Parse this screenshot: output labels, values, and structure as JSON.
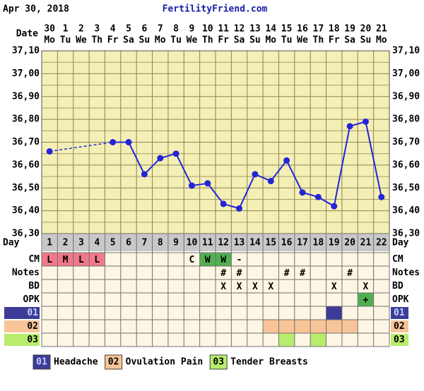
{
  "header": {
    "date": "Apr 30, 2018",
    "site": "FertilityFriend.com"
  },
  "chart_data": {
    "type": "line",
    "x_label": "Date",
    "categories": [
      "30",
      "1",
      "2",
      "3",
      "4",
      "5",
      "6",
      "7",
      "8",
      "9",
      "10",
      "11",
      "12",
      "13",
      "14",
      "15",
      "16",
      "17",
      "18",
      "19",
      "20",
      "21"
    ],
    "weekdays": [
      "Mo",
      "Tu",
      "We",
      "Th",
      "Fr",
      "Sa",
      "Su",
      "Mo",
      "Tu",
      "We",
      "Th",
      "Fr",
      "Sa",
      "Su",
      "Mo",
      "Tu",
      "We",
      "Th",
      "Fr",
      "Sa",
      "Su",
      "Mo"
    ],
    "series": [
      {
        "color": "#2424d8",
        "values": [
          36.66,
          null,
          null,
          null,
          36.7,
          36.7,
          36.56,
          36.63,
          36.65,
          36.51,
          36.52,
          36.43,
          36.41,
          36.56,
          36.53,
          36.62,
          36.48,
          36.46,
          36.42,
          36.77,
          36.79,
          36.46
        ]
      }
    ],
    "ylim": [
      36.3,
      37.1
    ],
    "yticks": [
      {
        "value": 36.3,
        "label": "36,30"
      },
      {
        "value": 36.4,
        "label": "36,40"
      },
      {
        "value": 36.5,
        "label": "36,50"
      },
      {
        "value": 36.6,
        "label": "36,60"
      },
      {
        "value": 36.7,
        "label": "36,70"
      },
      {
        "value": 36.8,
        "label": "36,80"
      },
      {
        "value": 36.9,
        "label": "36,90"
      },
      {
        "value": 37.0,
        "label": "37,00"
      },
      {
        "value": 37.1,
        "label": "37,10"
      }
    ],
    "grid": true,
    "background": "#f4efb4"
  },
  "table": {
    "day_label": "Day",
    "days": [
      1,
      2,
      3,
      4,
      5,
      6,
      7,
      8,
      9,
      10,
      11,
      12,
      13,
      14,
      15,
      16,
      17,
      18,
      19,
      20,
      21,
      22
    ],
    "rows": [
      {
        "label": "CM",
        "cells": [
          {
            "text": "L",
            "color": "#f0788a"
          },
          {
            "text": "M",
            "color": "#f0788a"
          },
          {
            "text": "L",
            "color": "#f0788a"
          },
          {
            "text": "L",
            "color": "#f0788a"
          },
          null,
          null,
          null,
          null,
          null,
          {
            "text": "C"
          },
          {
            "text": "W",
            "color": "#50b050"
          },
          {
            "text": "W",
            "color": "#50b050"
          },
          {
            "text": "-"
          },
          null,
          null,
          null,
          null,
          null,
          null,
          null,
          null,
          null
        ]
      },
      {
        "label": "Notes",
        "cells": [
          null,
          null,
          null,
          null,
          null,
          null,
          null,
          null,
          null,
          null,
          null,
          {
            "text": "#"
          },
          {
            "text": "#"
          },
          null,
          null,
          {
            "text": "#"
          },
          {
            "text": "#"
          },
          null,
          null,
          {
            "text": "#"
          },
          null,
          null
        ]
      },
      {
        "label": "BD",
        "cells": [
          null,
          null,
          null,
          null,
          null,
          null,
          null,
          null,
          null,
          null,
          null,
          {
            "text": "X"
          },
          {
            "text": "X"
          },
          {
            "text": "X"
          },
          {
            "text": "X"
          },
          null,
          null,
          null,
          {
            "text": "X"
          },
          null,
          {
            "text": "X"
          },
          null
        ]
      },
      {
        "label": "OPK",
        "cells": [
          null,
          null,
          null,
          null,
          null,
          null,
          null,
          null,
          null,
          null,
          null,
          null,
          null,
          null,
          null,
          null,
          null,
          null,
          null,
          null,
          {
            "text": "+",
            "color": "#50b050"
          },
          null
        ]
      }
    ]
  },
  "symptoms": [
    {
      "code": "01",
      "name": "Headache",
      "color": "#3c3c98",
      "text_color": "#c8d0ff",
      "marked": [
        false,
        false,
        false,
        false,
        false,
        false,
        false,
        false,
        false,
        false,
        false,
        false,
        false,
        false,
        false,
        false,
        false,
        false,
        true,
        false,
        false,
        false
      ]
    },
    {
      "code": "02",
      "name": "Ovulation Pain",
      "color": "#f8c498",
      "text_color": "#000000",
      "marked": [
        false,
        false,
        false,
        false,
        false,
        false,
        false,
        false,
        false,
        false,
        false,
        false,
        false,
        false,
        true,
        true,
        true,
        true,
        true,
        true,
        false,
        false
      ]
    },
    {
      "code": "03",
      "name": "Tender Breasts",
      "color": "#b8ec6c",
      "text_color": "#000000",
      "marked": [
        false,
        false,
        false,
        false,
        false,
        false,
        false,
        false,
        false,
        false,
        false,
        false,
        false,
        false,
        false,
        true,
        false,
        true,
        false,
        false,
        false,
        false
      ]
    }
  ]
}
